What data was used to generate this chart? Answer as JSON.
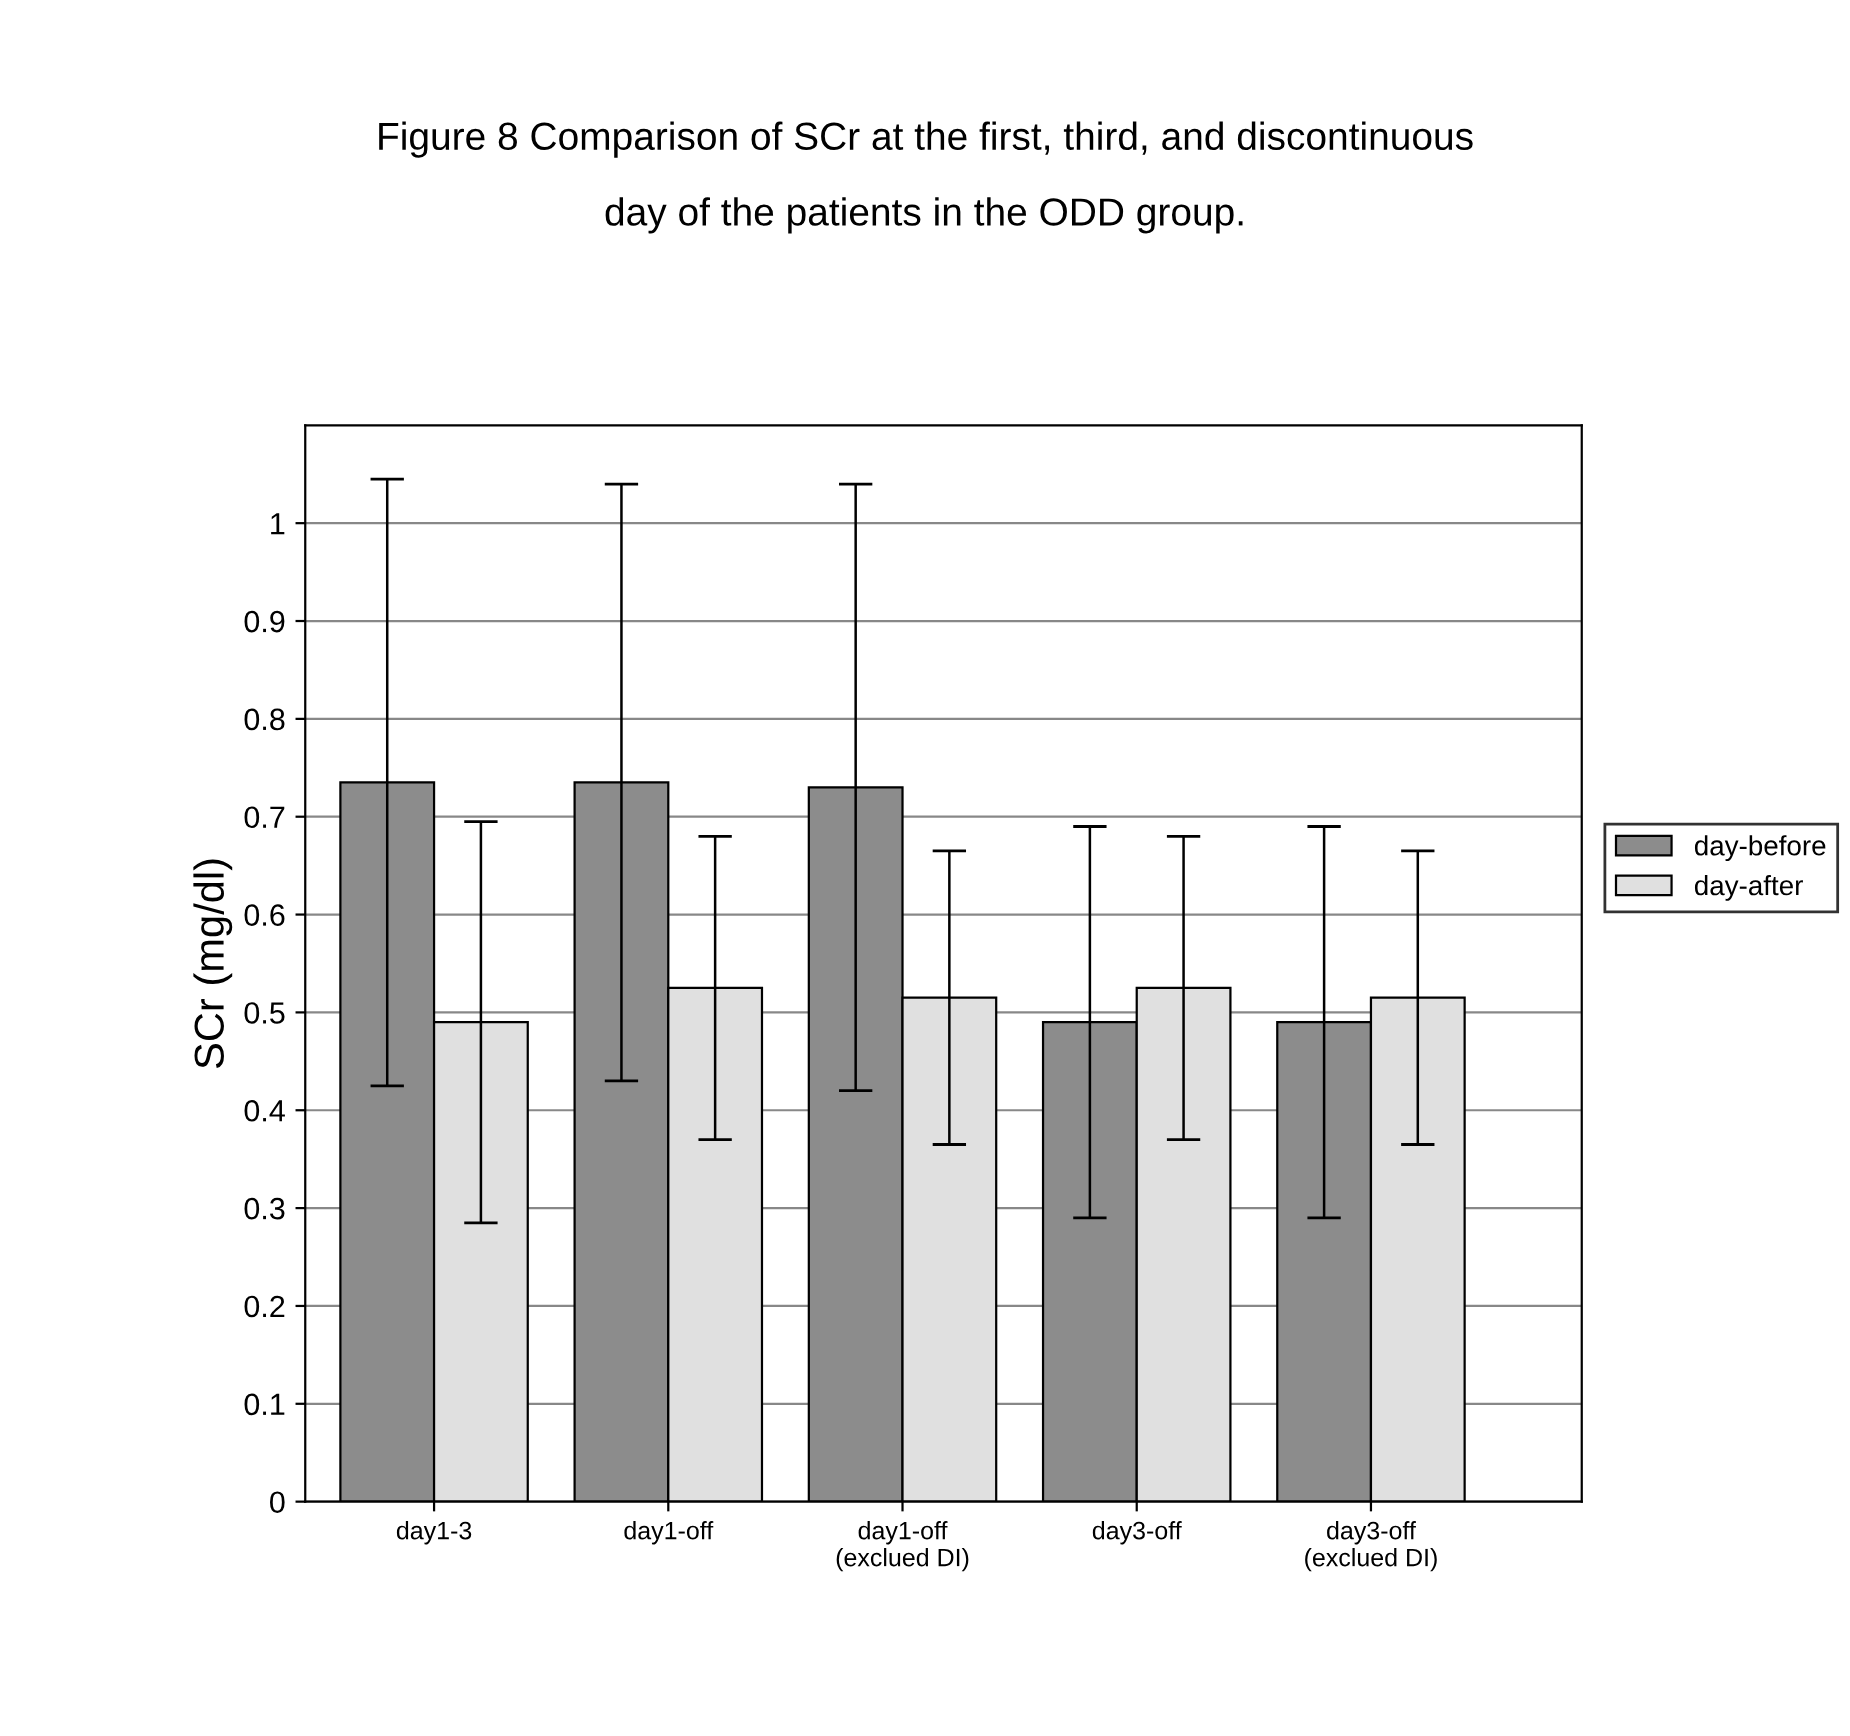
{
  "chart_data": {
    "type": "bar",
    "title": "Figure 8 Comparison of SCr at the first, third, and discontinuous\nday of the patients in the ODD group.",
    "ylabel": "SCr (mg/dl)",
    "categories": [
      "day1-3",
      "day1-off",
      "day1-off\n(exclued DI)",
      "day3-off",
      "day3-off\n(exclued DI)"
    ],
    "series": [
      {
        "name": "day-before",
        "color": "#8c8c8c",
        "values": [
          0.735,
          0.735,
          0.73,
          0.49,
          0.49
        ],
        "errors": [
          0.31,
          0.305,
          0.31,
          0.2,
          0.2
        ]
      },
      {
        "name": "day-after",
        "color": "#e0e0e0",
        "values": [
          0.49,
          0.525,
          0.515,
          0.525,
          0.515
        ],
        "errors": [
          0.205,
          0.155,
          0.15,
          0.155,
          0.15
        ]
      }
    ],
    "ylim": [
      0,
      1.1
    ],
    "yticks": [
      0,
      0.1,
      0.2,
      0.3,
      0.4,
      0.5,
      0.6,
      0.7,
      0.8,
      0.9,
      1
    ],
    "grid": "y",
    "legend": "right"
  }
}
